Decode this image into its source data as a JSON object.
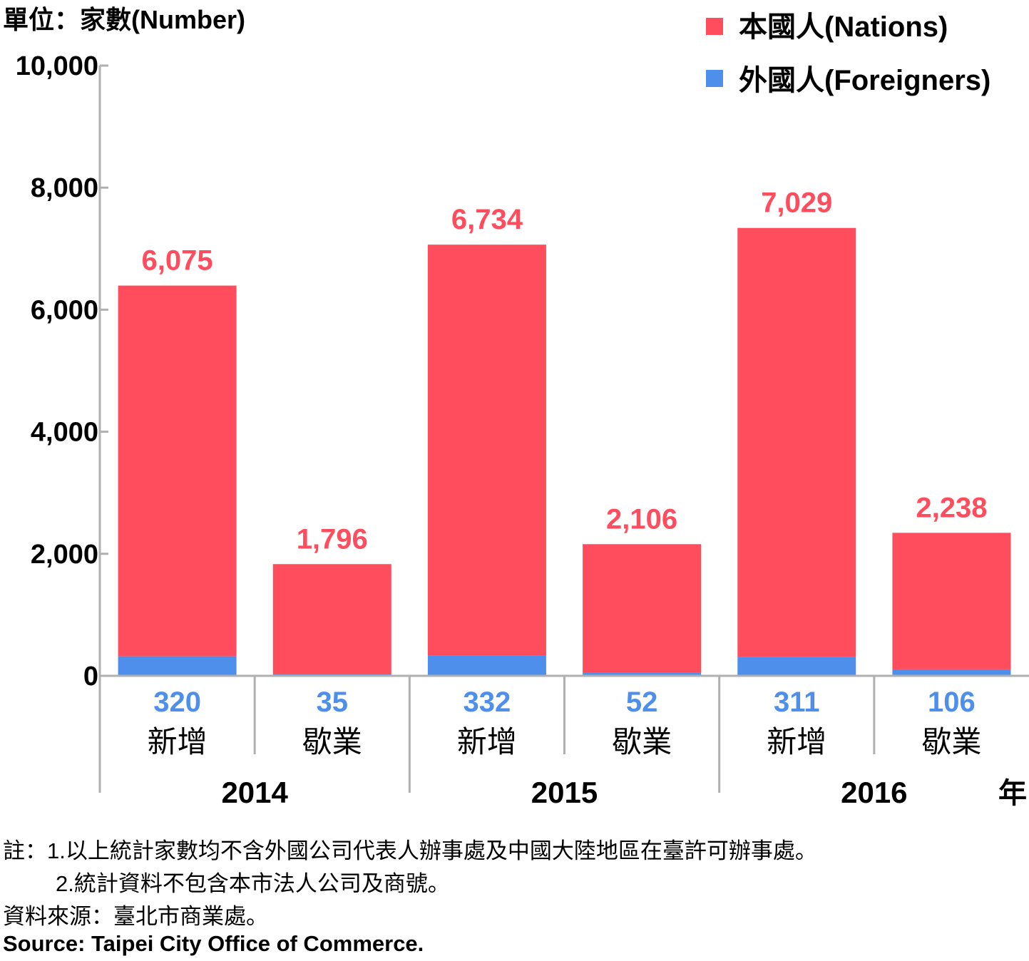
{
  "colors": {
    "nations": "#ff4d5e",
    "foreigners": "#4d8fea",
    "axis": "#b0b0b0",
    "text": "#000000"
  },
  "unit_label": "單位：家數(Number)",
  "year_suffix": "年",
  "chart_data": {
    "type": "bar",
    "stacked": true,
    "ylim": [
      0,
      10000
    ],
    "yticks": [
      0,
      2000,
      4000,
      6000,
      8000,
      10000
    ],
    "ytick_labels": [
      "0",
      "2,000",
      "4,000",
      "6,000",
      "8,000",
      "10,000"
    ],
    "categories": [
      "新增",
      "歇業",
      "新增",
      "歇業",
      "新增",
      "歇業"
    ],
    "groups": [
      {
        "label": "2014"
      },
      {
        "label": "2015"
      },
      {
        "label": "2016"
      }
    ],
    "series": [
      {
        "name": "外國人(Foreigners)",
        "color_key": "foreigners",
        "values": [
          320,
          35,
          332,
          52,
          311,
          106
        ],
        "value_labels": [
          "320",
          "35",
          "332",
          "52",
          "311",
          "106"
        ]
      },
      {
        "name": "本國人(Nations)",
        "color_key": "nations",
        "values": [
          6075,
          1796,
          6734,
          2106,
          7029,
          2238
        ],
        "value_labels": [
          "6,075",
          "1,796",
          "6,734",
          "2,106",
          "7,029",
          "2,238"
        ]
      }
    ],
    "legend": {
      "position": "top-right",
      "order": [
        "本國人(Nations)",
        "外國人(Foreigners)"
      ]
    }
  },
  "notes": {
    "line1": "註：1.以上統計家數均不含外國公司代表人辦事處及中國大陸地區在臺許可辦事處。",
    "line2": "2.統計資料不包含本市法人公司及商號。",
    "source_zh": "資料來源：臺北市商業處。",
    "source_en": "Source: Taipei City Office of Commerce."
  }
}
